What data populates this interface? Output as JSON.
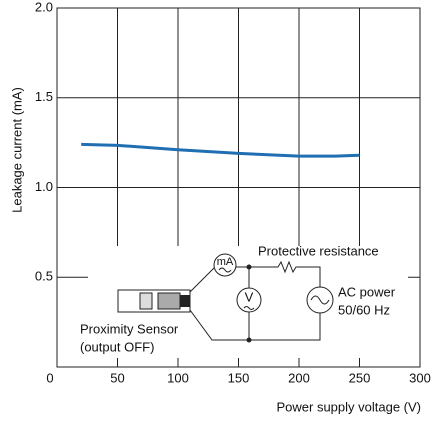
{
  "chart_data": {
    "type": "line",
    "x_label": "Power supply voltage (V)",
    "y_label": "Leakage current (mA)",
    "x": [
      20,
      50,
      100,
      150,
      200,
      230,
      250
    ],
    "series": [
      {
        "name": "Leakage current",
        "color": "#1f6fb2",
        "values": [
          1.24,
          1.235,
          1.21,
          1.19,
          1.175,
          1.175,
          1.18
        ]
      }
    ],
    "xlim": [
      0,
      300
    ],
    "xticks": [
      0,
      50,
      100,
      150,
      200,
      250,
      300
    ],
    "ylim": [
      0,
      2
    ],
    "yticks": [
      {
        "value": 0.5,
        "label": "0.5"
      },
      {
        "value": 1,
        "label": "1.0"
      },
      {
        "value": 1.5,
        "label": "1.5"
      },
      {
        "value": 2,
        "label": "2.0"
      }
    ],
    "grid": true,
    "annotations": {
      "meter_ma": "mA",
      "meter_v": "V",
      "resistor": "Protective resistance",
      "ac_power": "AC power",
      "ac_freq": "50/60 Hz",
      "sensor": "Proximity Sensor",
      "sensor_state": "(output OFF)"
    }
  }
}
